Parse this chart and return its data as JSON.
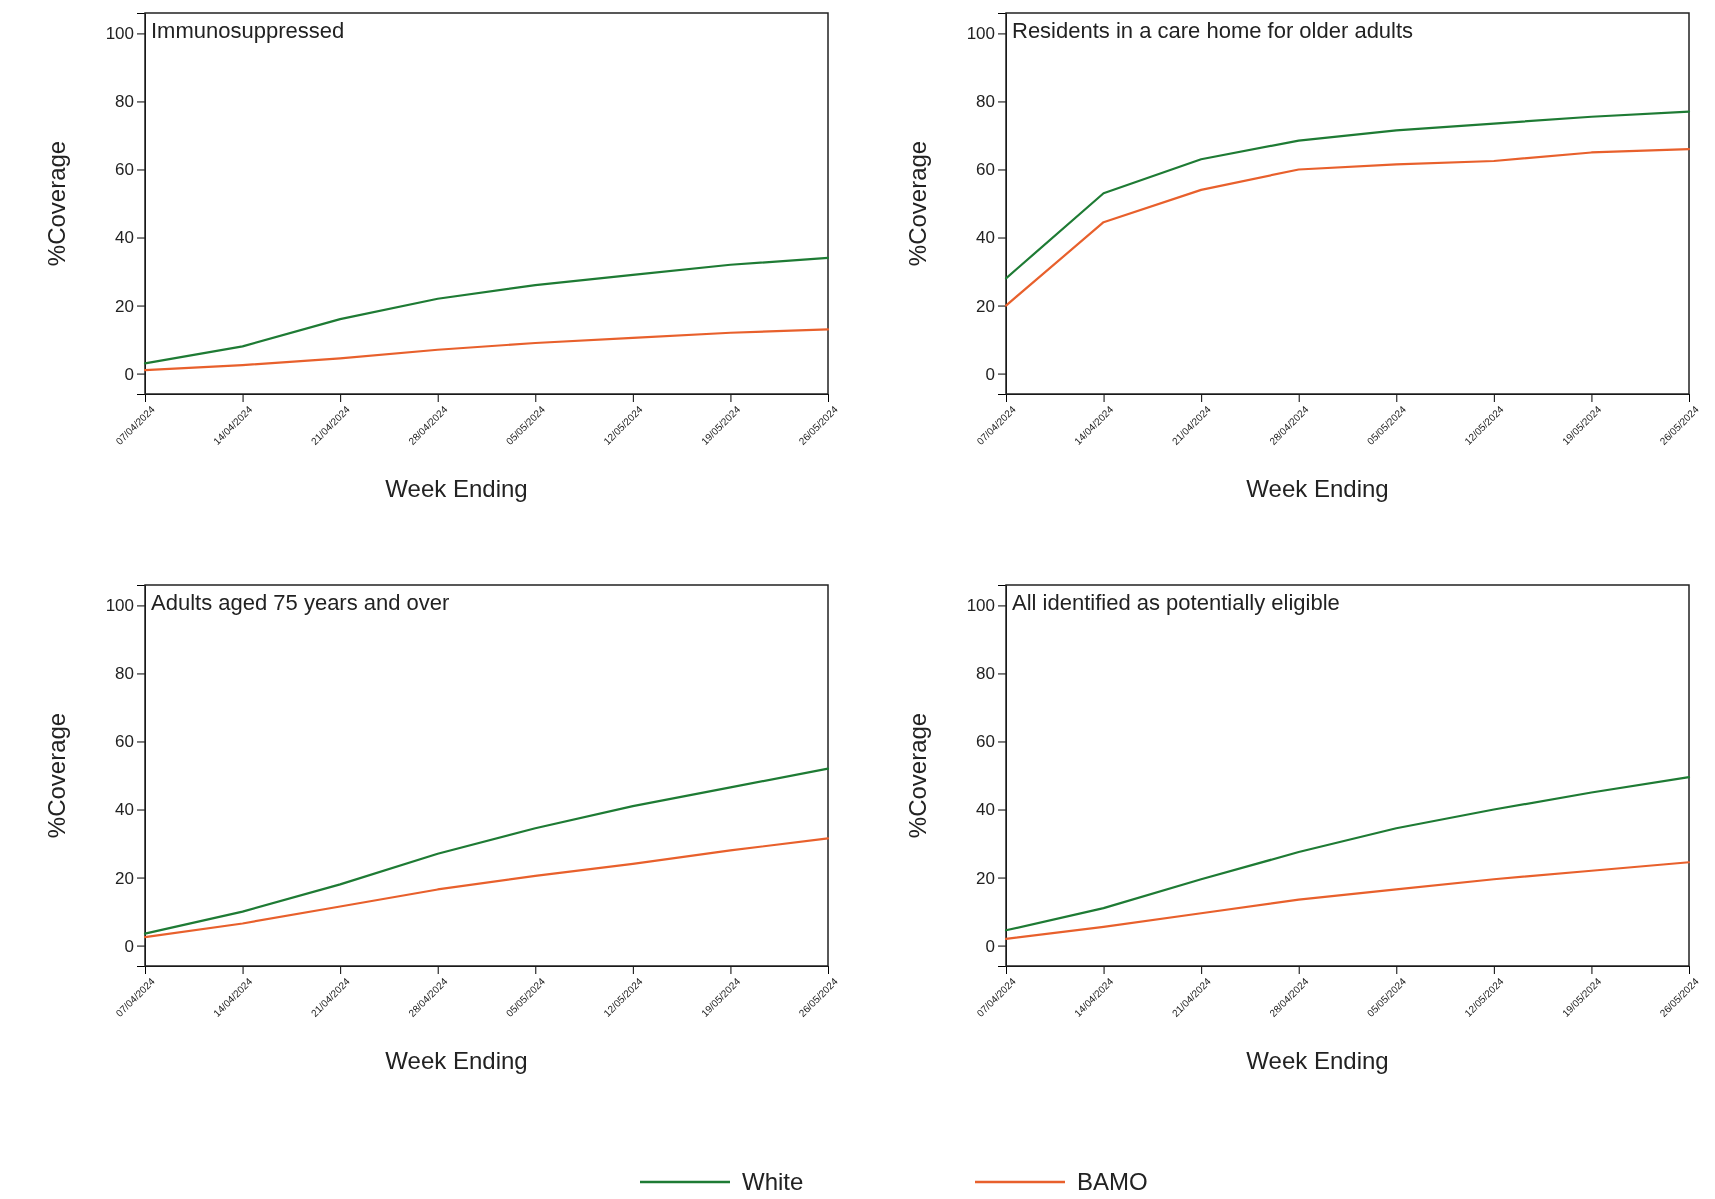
{
  "chart_data": [
    {
      "type": "line",
      "title": "Immunosuppressed",
      "xlabel": "Week Ending",
      "ylabel": "%Coverage",
      "x": [
        "2024-04-07",
        "2024-04-14",
        "2024-04-21",
        "2024-04-28",
        "2024-05-05",
        "2024-05-12",
        "2024-05-19",
        "2024-05-26"
      ],
      "series": [
        {
          "color": "#1e7b34",
          "values": [
            3,
            8,
            16,
            22,
            26,
            29,
            32,
            34
          ]
        },
        {
          "color": "#e8602c",
          "values": [
            1,
            2.5,
            4.5,
            7,
            9,
            10.5,
            12,
            13
          ]
        }
      ],
      "xlim": [
        "2024-04-07",
        "2024-05-26"
      ],
      "xticks": [
        {
          "value": "2024-04-07",
          "label": "07/04/2024"
        },
        {
          "value": "2024-04-14",
          "label": "14/04/2024"
        },
        {
          "value": "2024-04-21",
          "label": "21/04/2024"
        },
        {
          "value": "2024-04-28",
          "label": "28/04/2024"
        },
        {
          "value": "2024-05-05",
          "label": "05/05/2024"
        },
        {
          "value": "2024-05-12",
          "label": "12/05/2024"
        },
        {
          "value": "2024-05-19",
          "label": "19/05/2024"
        },
        {
          "value": "2024-05-26",
          "label": "26/05/2024"
        }
      ],
      "ylim": [
        -6,
        106
      ],
      "yticks": [
        0,
        20,
        40,
        60,
        80,
        100
      ]
    },
    {
      "type": "line",
      "title": "Residents in a care home for older adults",
      "xlabel": "Week Ending",
      "ylabel": "%Coverage",
      "x": [
        "2024-04-07",
        "2024-04-14",
        "2024-04-21",
        "2024-04-28",
        "2024-05-05",
        "2024-05-12",
        "2024-05-19",
        "2024-05-26"
      ],
      "series": [
        {
          "color": "#1e7b34",
          "values": [
            28,
            53,
            63,
            68.5,
            71.5,
            73.5,
            75.5,
            77
          ]
        },
        {
          "color": "#e8602c",
          "values": [
            20,
            44.5,
            54,
            60,
            61.5,
            62.5,
            65,
            66
          ]
        }
      ],
      "xlim": [
        "2024-04-07",
        "2024-05-26"
      ],
      "xticks": [
        {
          "value": "2024-04-07",
          "label": "07/04/2024"
        },
        {
          "value": "2024-04-14",
          "label": "14/04/2024"
        },
        {
          "value": "2024-04-21",
          "label": "21/04/2024"
        },
        {
          "value": "2024-04-28",
          "label": "28/04/2024"
        },
        {
          "value": "2024-05-05",
          "label": "05/05/2024"
        },
        {
          "value": "2024-05-12",
          "label": "12/05/2024"
        },
        {
          "value": "2024-05-19",
          "label": "19/05/2024"
        },
        {
          "value": "2024-05-26",
          "label": "26/05/2024"
        }
      ],
      "ylim": [
        -6,
        106
      ],
      "yticks": [
        0,
        20,
        40,
        60,
        80,
        100
      ]
    },
    {
      "type": "line",
      "title": "Adults aged 75 years and over",
      "xlabel": "Week Ending",
      "ylabel": "%Coverage",
      "x": [
        "2024-04-07",
        "2024-04-14",
        "2024-04-21",
        "2024-04-28",
        "2024-05-05",
        "2024-05-12",
        "2024-05-19",
        "2024-05-26"
      ],
      "series": [
        {
          "color": "#1e7b34",
          "values": [
            3.5,
            10,
            18,
            27,
            34.5,
            41,
            46.5,
            52
          ]
        },
        {
          "color": "#e8602c",
          "values": [
            2.5,
            6.5,
            11.5,
            16.5,
            20.5,
            24,
            28,
            31.5
          ]
        }
      ],
      "xlim": [
        "2024-04-07",
        "2024-05-26"
      ],
      "xticks": [
        {
          "value": "2024-04-07",
          "label": "07/04/2024"
        },
        {
          "value": "2024-04-14",
          "label": "14/04/2024"
        },
        {
          "value": "2024-04-21",
          "label": "21/04/2024"
        },
        {
          "value": "2024-04-28",
          "label": "28/04/2024"
        },
        {
          "value": "2024-05-05",
          "label": "05/05/2024"
        },
        {
          "value": "2024-05-12",
          "label": "12/05/2024"
        },
        {
          "value": "2024-05-19",
          "label": "19/05/2024"
        },
        {
          "value": "2024-05-26",
          "label": "26/05/2024"
        }
      ],
      "ylim": [
        -6,
        106
      ],
      "yticks": [
        0,
        20,
        40,
        60,
        80,
        100
      ]
    },
    {
      "type": "line",
      "title": "All identified as potentially eligible",
      "xlabel": "Week Ending",
      "ylabel": "%Coverage",
      "x": [
        "2024-04-07",
        "2024-04-14",
        "2024-04-21",
        "2024-04-28",
        "2024-05-05",
        "2024-05-12",
        "2024-05-19",
        "2024-05-26"
      ],
      "series": [
        {
          "name": "White",
          "color": "#1e7b34",
          "values": [
            4.5,
            11,
            19.5,
            27.5,
            34.5,
            40,
            45,
            49.5
          ]
        },
        {
          "name": "BAMO",
          "color": "#e8602c",
          "values": [
            2,
            5.5,
            9.5,
            13.5,
            16.5,
            19.5,
            22,
            24.5
          ]
        }
      ],
      "xlim": [
        "2024-04-07",
        "2024-05-26"
      ],
      "xticks": [
        {
          "value": "2024-04-07",
          "label": "07/04/2024"
        },
        {
          "value": "2024-04-14",
          "label": "14/04/2024"
        },
        {
          "value": "2024-04-21",
          "label": "21/04/2024"
        },
        {
          "value": "2024-04-28",
          "label": "28/04/2024"
        },
        {
          "value": "2024-05-05",
          "label": "05/05/2024"
        },
        {
          "value": "2024-05-12",
          "label": "12/05/2024"
        },
        {
          "value": "2024-05-19",
          "label": "19/05/2024"
        },
        {
          "value": "2024-05-26",
          "label": "26/05/2024"
        }
      ],
      "ylim": [
        -6,
        106
      ],
      "yticks": [
        0,
        20,
        40,
        60,
        80,
        100
      ],
      "legend": "bottom"
    }
  ]
}
